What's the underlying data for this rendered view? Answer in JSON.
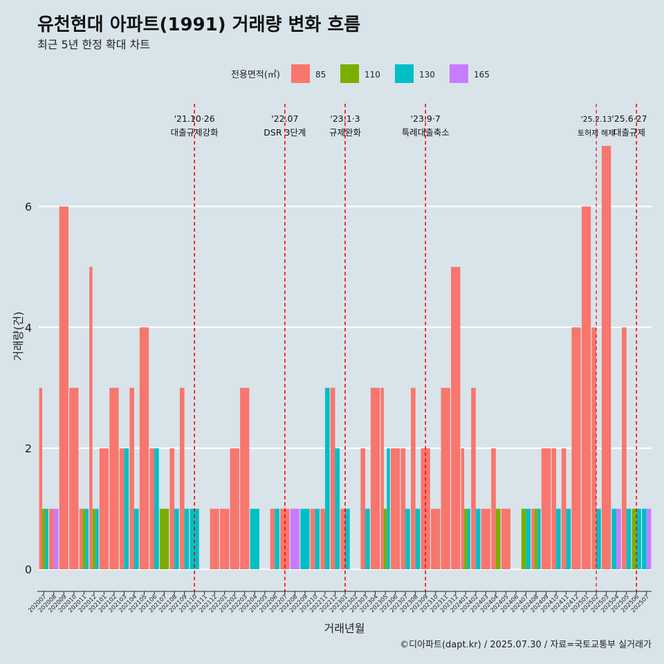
{
  "header": {
    "title": "유천현대 아파트(1991) 거래량 변화 흐름",
    "subtitle": "최근 5년 한정 확대 차트",
    "caption": "©디아파트(dapt.kr) / 2025.07.30 / 자료=국토교통부 실거래가"
  },
  "chart_data": {
    "type": "bar",
    "title": "유천현대 아파트(1991) 거래량 변화 흐름",
    "xlabel": "거래년월",
    "ylabel": "거래량(건)",
    "ylim": [
      0,
      7.5
    ],
    "yticks": [
      0,
      2,
      4,
      6
    ],
    "grid": true,
    "legend_title": "전용면적(㎡)",
    "legend_position": "top",
    "categories": [
      "202007",
      "202008",
      "202009",
      "202010",
      "202011",
      "202012",
      "202101",
      "202102",
      "202103",
      "202104",
      "202105",
      "202106",
      "202107",
      "202108",
      "202109",
      "202110",
      "202111",
      "202112",
      "202201",
      "202202",
      "202203",
      "202204",
      "202205",
      "202206",
      "202207",
      "202208",
      "202209",
      "202210",
      "202211",
      "202212",
      "202301",
      "202302",
      "202303",
      "202304",
      "202305",
      "202306",
      "202307",
      "202308",
      "202309",
      "202310",
      "202311",
      "202312",
      "202401",
      "202402",
      "202403",
      "202404",
      "202405",
      "202406",
      "202407",
      "202408",
      "202409",
      "202410",
      "202411",
      "202412",
      "202501",
      "202502",
      "202503",
      "202504",
      "202505",
      "202506",
      "202507"
    ],
    "series": [
      {
        "name": "85",
        "color": "#f8766d",
        "values": [
          3,
          1,
          6,
          3,
          1,
          5,
          2,
          3,
          2,
          3,
          4,
          2,
          0,
          2,
          3,
          0,
          0,
          1,
          1,
          2,
          3,
          0,
          0,
          1,
          1,
          0,
          0,
          1,
          1,
          3,
          1,
          0,
          2,
          3,
          3,
          2,
          2,
          3,
          2,
          1,
          3,
          5,
          2,
          3,
          1,
          2,
          1,
          0,
          0,
          1,
          2,
          2,
          2,
          4,
          6,
          4,
          7,
          0,
          4,
          0,
          0
        ]
      },
      {
        "name": "110",
        "color": "#7cae00",
        "values": [
          1,
          0,
          0,
          0,
          1,
          1,
          0,
          0,
          0,
          0,
          0,
          0,
          1,
          0,
          0,
          0,
          0,
          0,
          0,
          0,
          0,
          0,
          0,
          0,
          0,
          0,
          0,
          0,
          0,
          0,
          0,
          0,
          0,
          0,
          1,
          0,
          0,
          0,
          0,
          0,
          0,
          0,
          1,
          0,
          0,
          1,
          0,
          0,
          1,
          1,
          0,
          0,
          0,
          0,
          0,
          0,
          0,
          0,
          0,
          1,
          0
        ]
      },
      {
        "name": "130",
        "color": "#00bfc4",
        "values": [
          1,
          0,
          0,
          0,
          1,
          1,
          0,
          0,
          2,
          1,
          0,
          2,
          0,
          1,
          1,
          1,
          0,
          0,
          0,
          0,
          0,
          1,
          0,
          1,
          0,
          0,
          1,
          1,
          3,
          2,
          1,
          0,
          1,
          0,
          2,
          0,
          1,
          1,
          0,
          0,
          0,
          0,
          1,
          1,
          0,
          0,
          0,
          0,
          1,
          1,
          0,
          1,
          1,
          0,
          0,
          1,
          0,
          1,
          1,
          1,
          1
        ]
      },
      {
        "name": "165",
        "color": "#c77cff",
        "values": [
          0,
          1,
          0,
          0,
          0,
          0,
          0,
          0,
          0,
          0,
          0,
          0,
          0,
          0,
          0,
          0,
          0,
          0,
          0,
          0,
          0,
          0,
          0,
          0,
          0,
          1,
          0,
          0,
          0,
          0,
          0,
          0,
          0,
          0,
          0,
          0,
          0,
          0,
          0,
          0,
          0,
          0,
          0,
          0,
          0,
          0,
          0,
          0,
          0,
          0,
          0,
          0,
          0,
          0,
          0,
          0,
          0,
          1,
          0,
          0,
          1
        ]
      }
    ],
    "annotations": [
      {
        "date": "'21.10·26",
        "label": "대출규제강화",
        "at": "202110"
      },
      {
        "date": "'22.07",
        "label": "DSR 3단계",
        "at": "202207"
      },
      {
        "date": "'23.1·3",
        "label": "규제완화",
        "at": "202301"
      },
      {
        "date": "'23.9·7",
        "label": "특례대출축소",
        "at": "202309"
      },
      {
        "date": "'25.2.13",
        "label": "토허제 해제",
        "at": "202502",
        "small": true
      },
      {
        "date": "'25.6·27",
        "label": "대출규제",
        "at": "202506"
      }
    ]
  }
}
